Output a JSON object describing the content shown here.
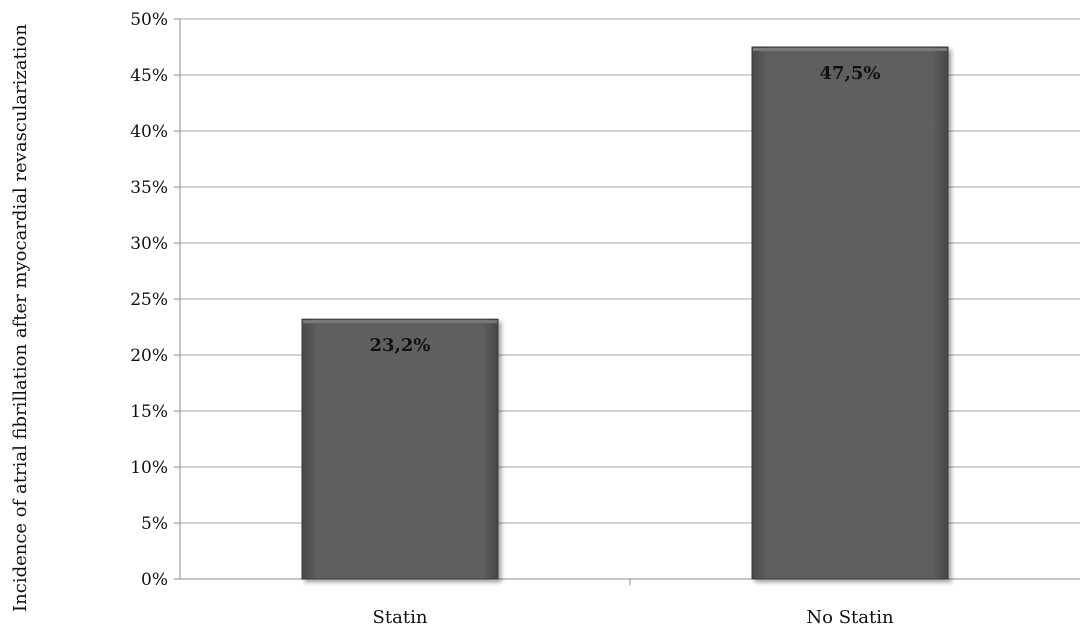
{
  "chart_data": {
    "type": "bar",
    "title": "",
    "xlabel": "",
    "ylabel": "Incidence of atrial fibrillation after myocardial revascularization",
    "categories": [
      "Statin",
      "No Statin"
    ],
    "values": [
      23.2,
      47.5
    ],
    "data_labels": [
      "23,2%",
      "47,5%"
    ],
    "ylim": [
      0,
      50
    ],
    "y_ticks": [
      0,
      5,
      10,
      15,
      20,
      25,
      30,
      35,
      40,
      45,
      50
    ],
    "y_tick_labels": [
      "0%",
      "5%",
      "10%",
      "15%",
      "20%",
      "25%",
      "30%",
      "35%",
      "40%",
      "45%",
      "50%"
    ],
    "grid": true,
    "legend": "none",
    "colors": {
      "bar": "#5f5f5f",
      "bar_edge": "#3a3a3a",
      "grid": "#a6a6a6",
      "axis": "#8c8c8c",
      "text": "#111111"
    }
  }
}
